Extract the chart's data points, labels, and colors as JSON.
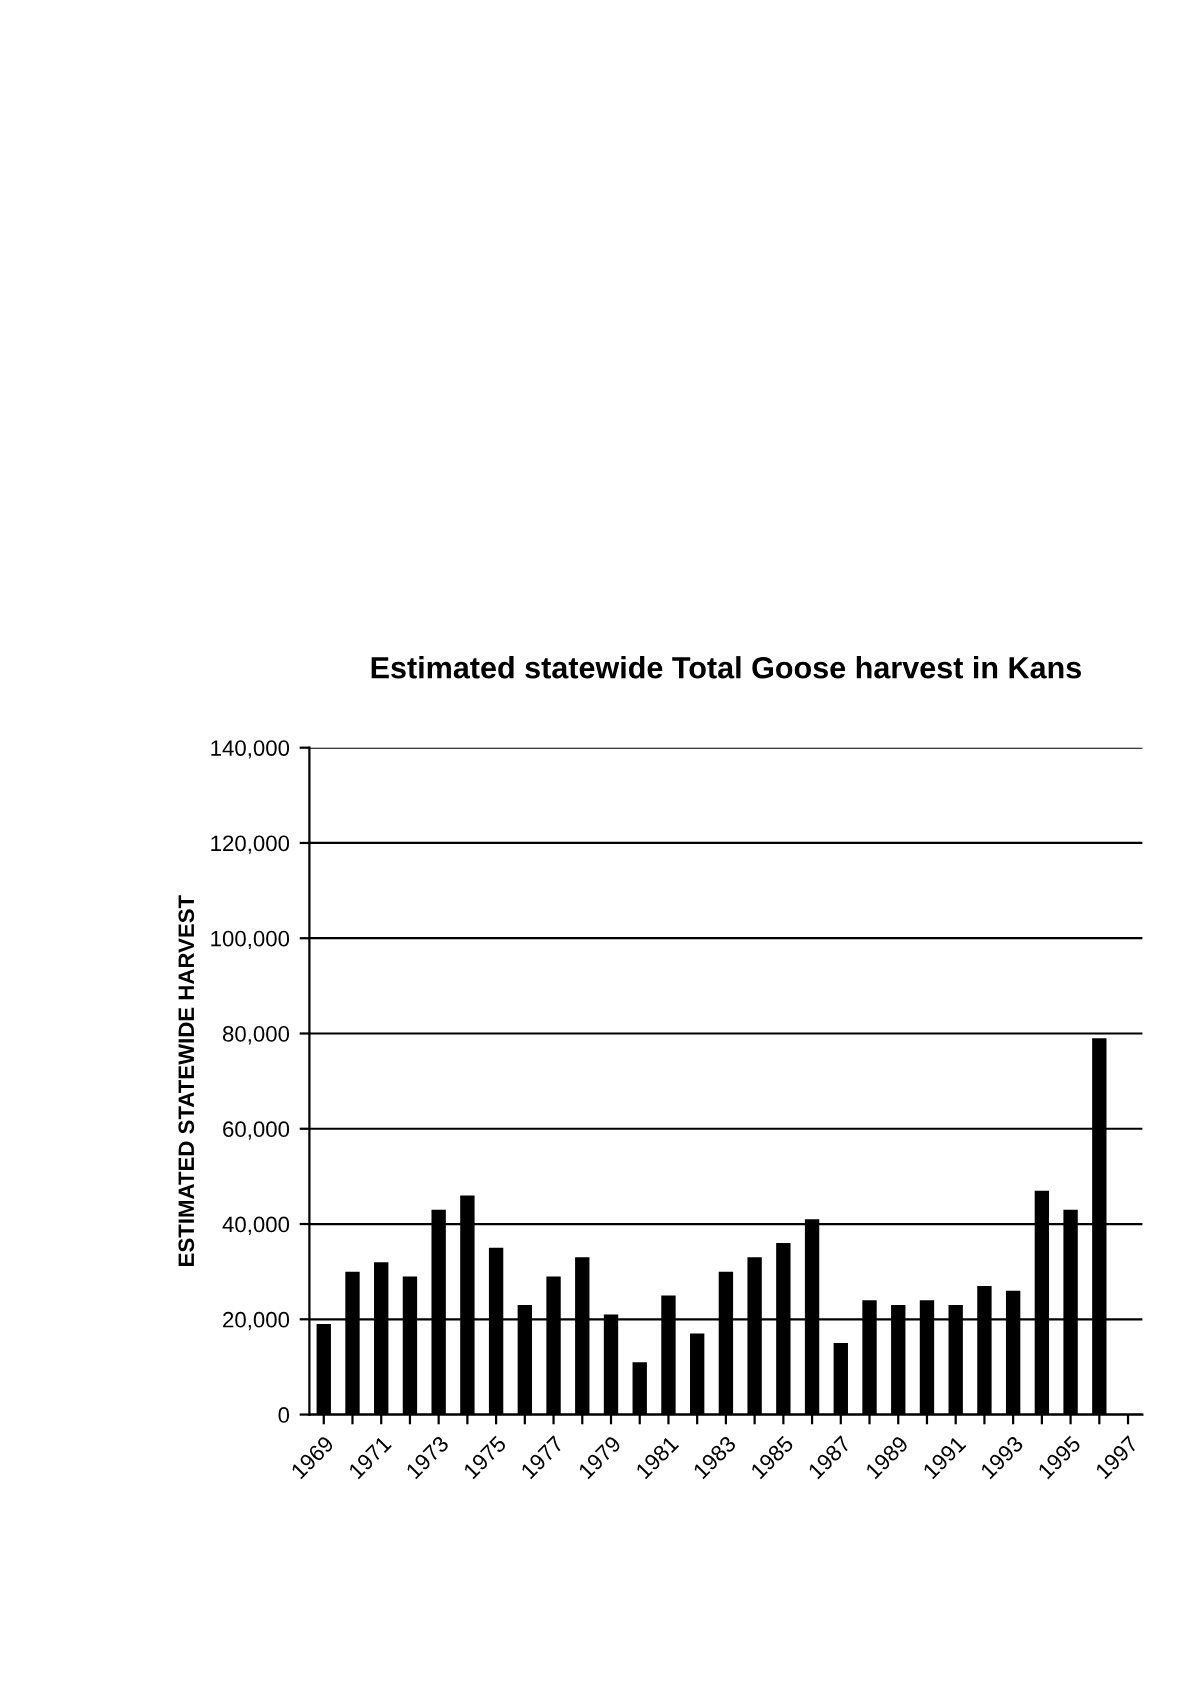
{
  "chart_data": {
    "type": "bar",
    "title": "Estimated statewide Total Goose harvest in Kans",
    "ylabel": "ESTIMATED STATEWIDE HARVEST",
    "categories": [
      "1969",
      null,
      "1971",
      null,
      "1973",
      null,
      "1975",
      null,
      "1977",
      null,
      "1979",
      null,
      "1981",
      null,
      "1983",
      null,
      "1985",
      null,
      "1987",
      null,
      "1989",
      null,
      "1991",
      null,
      "1993",
      null,
      "1995",
      null,
      "1997"
    ],
    "values": [
      19000,
      30000,
      32000,
      29000,
      43000,
      46000,
      35000,
      23000,
      29000,
      33000,
      21000,
      11000,
      25000,
      17000,
      30000,
      33000,
      36000,
      41000,
      15000,
      24000,
      23000,
      24000,
      23000,
      27000,
      26000,
      47000,
      43000,
      79000,
      null
    ],
    "color": "#000000",
    "ylim": [
      0,
      140000
    ],
    "yticks": [
      {
        "value": 0,
        "label": "0"
      },
      {
        "value": 20000,
        "label": "20,000"
      },
      {
        "value": 40000,
        "label": "40,000"
      },
      {
        "value": 60000,
        "label": "60,000"
      },
      {
        "value": 80000,
        "label": "80,000"
      },
      {
        "value": 100000,
        "label": "100,000"
      },
      {
        "value": 120000,
        "label": "120,000"
      },
      {
        "value": 140000,
        "label": "140,000"
      }
    ],
    "grid": "y",
    "legend": false
  }
}
